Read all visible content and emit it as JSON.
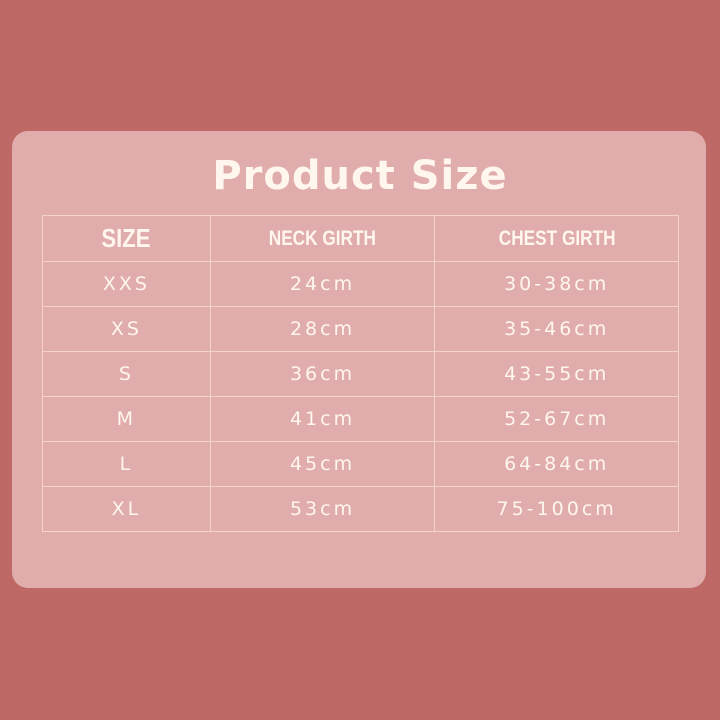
{
  "title": "Product Size",
  "colors": {
    "background": "#bf6966",
    "card": "#e0adac",
    "text": "#fff6ee",
    "grid": "#f4d3cd"
  },
  "table": {
    "headers": [
      "SIZE",
      "NECK GIRTH",
      "CHEST GIRTH"
    ],
    "rows": [
      [
        "XXS",
        "24cm",
        "30-38cm"
      ],
      [
        "XS",
        "28cm",
        "35-46cm"
      ],
      [
        "S",
        "36cm",
        "43-55cm"
      ],
      [
        "M",
        "41cm",
        "52-67cm"
      ],
      [
        "L",
        "45cm",
        "64-84cm"
      ],
      [
        "XL",
        "53cm",
        "75-100cm"
      ]
    ]
  }
}
